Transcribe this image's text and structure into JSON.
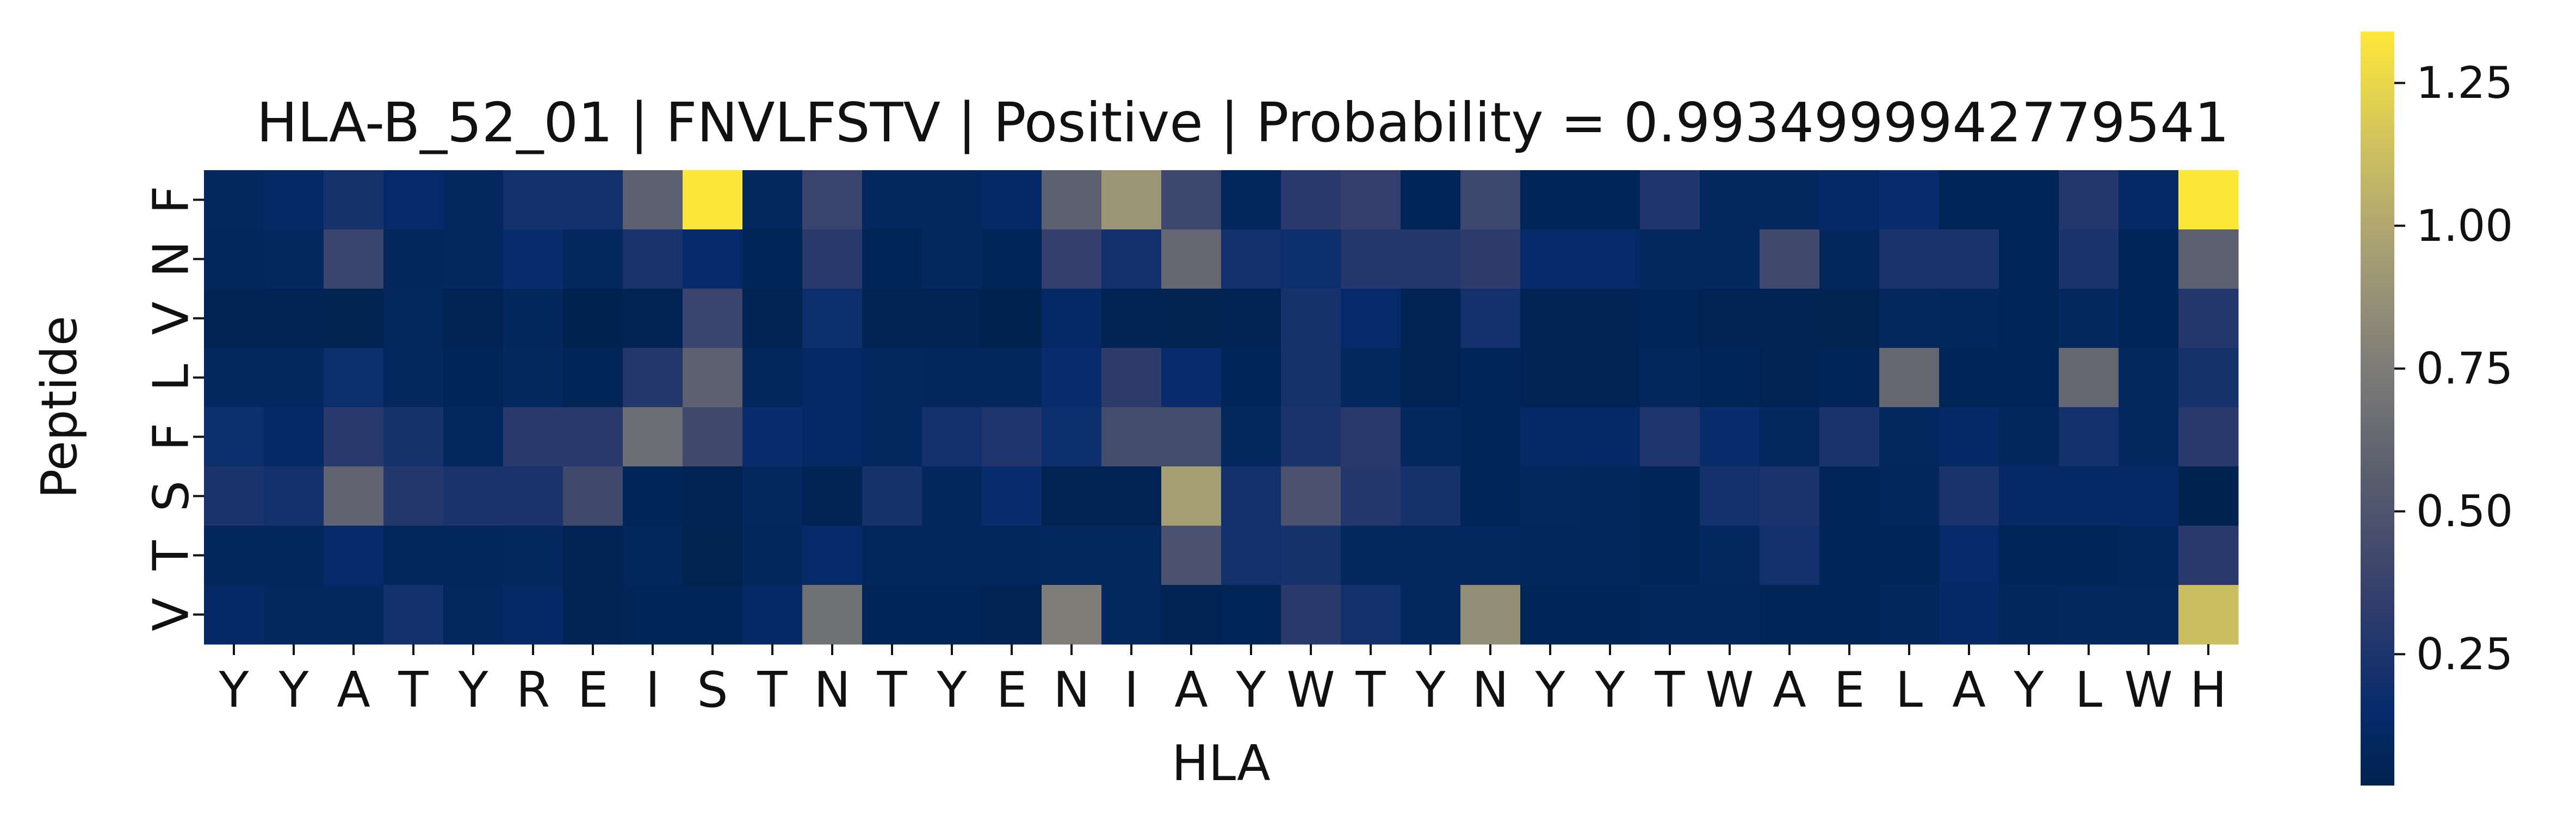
{
  "chart_data": {
    "type": "heatmap",
    "title": "HLA-B_52_01 | FNVLFSTV | Positive | Probability = 0.9934999942779541",
    "xlabel": "HLA",
    "ylabel": "Peptide",
    "x_categories": [
      "Y",
      "Y",
      "A",
      "T",
      "Y",
      "R",
      "E",
      "I",
      "S",
      "T",
      "N",
      "T",
      "Y",
      "E",
      "N",
      "I",
      "A",
      "Y",
      "W",
      "T",
      "Y",
      "N",
      "Y",
      "Y",
      "T",
      "W",
      "A",
      "E",
      "L",
      "A",
      "Y",
      "L",
      "W",
      "H"
    ],
    "y_categories": [
      "F",
      "N",
      "V",
      "L",
      "F",
      "S",
      "T",
      "V"
    ],
    "colormap": "cividis",
    "color_range": [
      0.02,
      1.34
    ],
    "colorbar_ticks": [
      0.25,
      0.5,
      0.75,
      1.0,
      1.25
    ],
    "colorbar_tick_labels": [
      "0.25",
      "0.50",
      "0.75",
      "1.00",
      "1.25"
    ],
    "values": [
      [
        0.1,
        0.12,
        0.22,
        0.14,
        0.1,
        0.2,
        0.2,
        0.58,
        1.33,
        0.1,
        0.38,
        0.1,
        0.1,
        0.12,
        0.58,
        0.9,
        0.4,
        0.08,
        0.3,
        0.35,
        0.06,
        0.4,
        0.06,
        0.06,
        0.26,
        0.1,
        0.1,
        0.12,
        0.16,
        0.06,
        0.06,
        0.28,
        0.12,
        1.33
      ],
      [
        0.08,
        0.1,
        0.38,
        0.08,
        0.1,
        0.16,
        0.1,
        0.24,
        0.14,
        0.06,
        0.3,
        0.06,
        0.1,
        0.06,
        0.35,
        0.2,
        0.62,
        0.2,
        0.18,
        0.28,
        0.28,
        0.32,
        0.14,
        0.14,
        0.1,
        0.1,
        0.42,
        0.08,
        0.24,
        0.24,
        0.06,
        0.24,
        0.06,
        0.58
      ],
      [
        0.04,
        0.04,
        0.03,
        0.1,
        0.04,
        0.08,
        0.02,
        0.04,
        0.38,
        0.04,
        0.18,
        0.04,
        0.04,
        0.02,
        0.12,
        0.04,
        0.03,
        0.04,
        0.22,
        0.14,
        0.04,
        0.2,
        0.04,
        0.04,
        0.06,
        0.04,
        0.04,
        0.03,
        0.1,
        0.08,
        0.06,
        0.1,
        0.06,
        0.28
      ],
      [
        0.1,
        0.1,
        0.18,
        0.1,
        0.06,
        0.1,
        0.06,
        0.28,
        0.58,
        0.08,
        0.12,
        0.1,
        0.08,
        0.08,
        0.16,
        0.32,
        0.16,
        0.06,
        0.22,
        0.1,
        0.04,
        0.06,
        0.04,
        0.04,
        0.08,
        0.06,
        0.04,
        0.06,
        0.62,
        0.06,
        0.06,
        0.62,
        0.1,
        0.22
      ],
      [
        0.18,
        0.12,
        0.3,
        0.22,
        0.1,
        0.3,
        0.3,
        0.66,
        0.42,
        0.16,
        0.12,
        0.1,
        0.2,
        0.26,
        0.18,
        0.44,
        0.44,
        0.1,
        0.24,
        0.3,
        0.1,
        0.06,
        0.12,
        0.12,
        0.26,
        0.16,
        0.1,
        0.24,
        0.1,
        0.12,
        0.08,
        0.2,
        0.1,
        0.3
      ],
      [
        0.24,
        0.2,
        0.6,
        0.28,
        0.24,
        0.24,
        0.42,
        0.06,
        0.04,
        0.1,
        0.04,
        0.22,
        0.08,
        0.16,
        0.04,
        0.04,
        0.95,
        0.2,
        0.48,
        0.28,
        0.22,
        0.06,
        0.1,
        0.08,
        0.06,
        0.2,
        0.24,
        0.06,
        0.08,
        0.24,
        0.12,
        0.12,
        0.12,
        0.02
      ],
      [
        0.08,
        0.08,
        0.14,
        0.08,
        0.08,
        0.1,
        0.04,
        0.08,
        0.03,
        0.08,
        0.14,
        0.08,
        0.08,
        0.08,
        0.1,
        0.1,
        0.48,
        0.2,
        0.22,
        0.1,
        0.1,
        0.1,
        0.08,
        0.08,
        0.06,
        0.1,
        0.2,
        0.06,
        0.06,
        0.14,
        0.06,
        0.06,
        0.08,
        0.3
      ],
      [
        0.12,
        0.1,
        0.1,
        0.2,
        0.1,
        0.12,
        0.04,
        0.06,
        0.06,
        0.12,
        0.68,
        0.06,
        0.06,
        0.04,
        0.76,
        0.1,
        0.04,
        0.06,
        0.3,
        0.2,
        0.1,
        0.86,
        0.06,
        0.06,
        0.08,
        0.08,
        0.06,
        0.06,
        0.08,
        0.12,
        0.08,
        0.1,
        0.1,
        1.12
      ]
    ]
  }
}
